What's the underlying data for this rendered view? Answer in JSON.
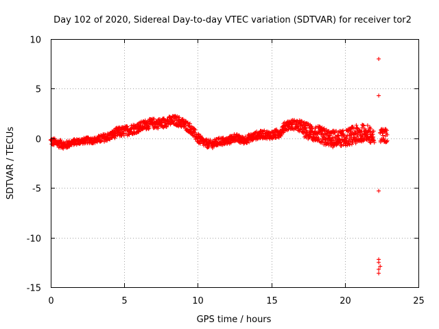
{
  "chart_data": {
    "type": "scatter",
    "title": "Day 102 of 2020, Sidereal Day-to-day VTEC variation (SDTVAR) for receiver tor2",
    "xlabel": "GPS time / hours",
    "ylabel": "SDTVAR / TECUs",
    "xlim": [
      0,
      25
    ],
    "ylim": [
      -15,
      10
    ],
    "xticks": [
      0,
      5,
      10,
      15,
      20,
      25
    ],
    "yticks": [
      -15,
      -10,
      -5,
      0,
      5,
      10
    ],
    "xtick_labels": [
      "0",
      "5",
      "10",
      "15",
      "20",
      "25"
    ],
    "ytick_labels": [
      "-15",
      "-10",
      "-5",
      "0",
      "5",
      "10"
    ],
    "grid": true,
    "marker": "+",
    "series_color": "#ff0000",
    "trend": {
      "name": "SDTVAR band (main trace, centre and half-width in TECU)",
      "x": [
        0.0,
        0.5,
        1.0,
        1.5,
        2.0,
        2.5,
        3.0,
        3.5,
        4.0,
        4.5,
        5.0,
        5.5,
        6.0,
        6.5,
        7.0,
        7.5,
        8.0,
        8.5,
        9.0,
        9.5,
        10.0,
        10.5,
        11.0,
        11.5,
        12.0,
        12.5,
        13.0,
        13.5,
        14.0,
        14.5,
        15.0,
        15.5,
        16.0,
        16.5,
        17.0,
        17.5,
        18.0,
        18.5,
        19.0,
        19.5,
        20.0,
        20.5,
        21.0,
        21.5,
        22.0
      ],
      "y": [
        -0.3,
        -0.5,
        -0.7,
        -0.4,
        -0.3,
        -0.2,
        -0.2,
        0.0,
        0.2,
        0.6,
        0.7,
        0.9,
        1.1,
        1.4,
        1.5,
        1.5,
        1.7,
        1.8,
        1.5,
        1.0,
        0.0,
        -0.5,
        -0.6,
        -0.3,
        -0.3,
        0.1,
        -0.2,
        0.0,
        0.3,
        0.4,
        0.3,
        0.5,
        1.3,
        1.4,
        1.2,
        0.8,
        0.5,
        0.3,
        0.0,
        0.0,
        0.0,
        0.3,
        0.5,
        0.6,
        0.2
      ],
      "spread": [
        0.4,
        0.4,
        0.4,
        0.3,
        0.3,
        0.3,
        0.3,
        0.4,
        0.4,
        0.5,
        0.5,
        0.5,
        0.5,
        0.5,
        0.5,
        0.5,
        0.5,
        0.5,
        0.5,
        0.5,
        0.5,
        0.4,
        0.4,
        0.4,
        0.4,
        0.4,
        0.4,
        0.4,
        0.4,
        0.4,
        0.4,
        0.5,
        0.5,
        0.5,
        0.6,
        0.7,
        0.8,
        0.8,
        0.8,
        0.8,
        0.8,
        0.9,
        0.9,
        0.8,
        0.7
      ]
    },
    "late_cluster": {
      "x_range": [
        22.4,
        22.9
      ],
      "y_center": 0.3,
      "spread": 0.7
    },
    "outliers": [
      {
        "x": 22.3,
        "y": 8.0
      },
      {
        "x": 22.3,
        "y": 4.3
      },
      {
        "x": 22.3,
        "y": -5.3
      },
      {
        "x": 22.3,
        "y": -12.2
      },
      {
        "x": 22.3,
        "y": -12.5
      },
      {
        "x": 22.4,
        "y": -12.9
      },
      {
        "x": 22.3,
        "y": -13.2
      },
      {
        "x": 22.3,
        "y": -13.6
      }
    ]
  }
}
